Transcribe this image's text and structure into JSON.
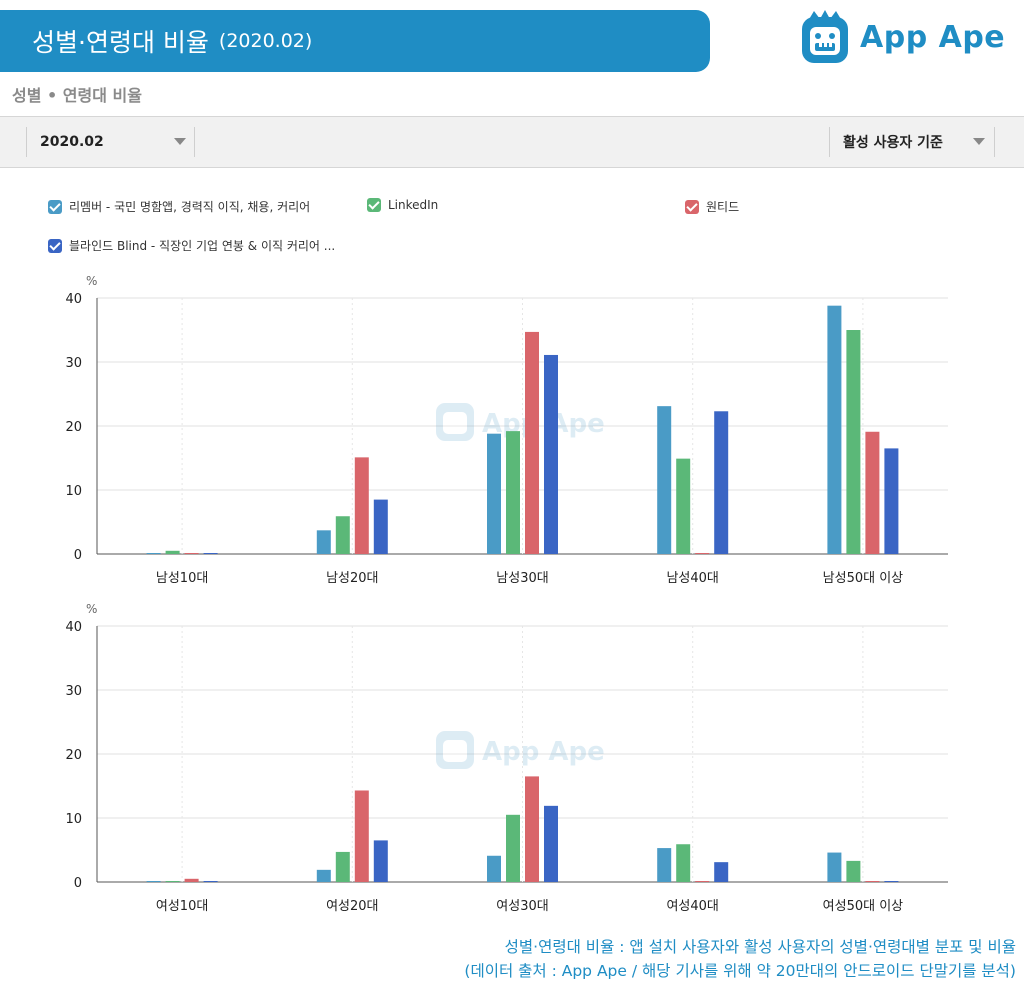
{
  "header": {
    "title": "성별·연령대 비율",
    "period": "(2020.02)",
    "logo_text": "App Ape",
    "subtitle": "성별 • 연령대 비율"
  },
  "toolbar": {
    "period_value": "2020.02",
    "basis_value": "활성 사용자 기준"
  },
  "colors": {
    "banner": "#1f8dc4",
    "series": [
      "#4a9bc6",
      "#5bb878",
      "#d9656a",
      "#3a65c4"
    ]
  },
  "legend": [
    {
      "label": "리멤버 - 국민 명함앱, 경력직 이직, 채용, 커리어"
    },
    {
      "label": "LinkedIn"
    },
    {
      "label": "원티드"
    },
    {
      "label": "블라인드 Blind - 직장인 기업 연봉 & 이직 커리어 ..."
    }
  ],
  "chart_data": [
    {
      "type": "bar",
      "unit": "%",
      "ylim": [
        0,
        40
      ],
      "yticks": [
        0,
        10,
        20,
        30,
        40
      ],
      "categories": [
        "남성10대",
        "남성20대",
        "남성30대",
        "남성40대",
        "남성50대 이상"
      ],
      "series": [
        {
          "name": "리멤버 - 국민 명함앱, 경력직 이직, 채용, 커리어",
          "values": [
            0.1,
            3.7,
            18.8,
            23.1,
            38.8
          ]
        },
        {
          "name": "LinkedIn",
          "values": [
            0.5,
            5.9,
            19.2,
            14.9,
            35.0
          ]
        },
        {
          "name": "원티드",
          "values": [
            0.1,
            15.1,
            34.7,
            0.1,
            19.1
          ]
        },
        {
          "name": "블라인드 Blind - 직장인 기업 연봉 & 이직 커리어 ...",
          "values": [
            0.1,
            8.5,
            31.1,
            22.3,
            16.5
          ]
        }
      ]
    },
    {
      "type": "bar",
      "unit": "%",
      "ylim": [
        0,
        40
      ],
      "yticks": [
        0,
        10,
        20,
        30,
        40
      ],
      "categories": [
        "여성10대",
        "여성20대",
        "여성30대",
        "여성40대",
        "여성50대 이상"
      ],
      "series": [
        {
          "name": "리멤버 - 국민 명함앱, 경력직 이직, 채용, 커리어",
          "values": [
            0.1,
            1.9,
            4.1,
            5.3,
            4.6
          ]
        },
        {
          "name": "LinkedIn",
          "values": [
            0.1,
            4.7,
            10.5,
            5.9,
            3.3
          ]
        },
        {
          "name": "원티드",
          "values": [
            0.5,
            14.3,
            16.5,
            0.1,
            0.1
          ]
        },
        {
          "name": "블라인드 Blind - 직장인 기업 연봉 & 이직 커리어 ...",
          "values": [
            0.1,
            6.5,
            11.9,
            3.1,
            0.1
          ]
        }
      ]
    }
  ],
  "caption": {
    "line1": "성별·연령대 비율 : 앱 설치 사용자와 활성 사용자의 성별·연령대별 분포 및 비율",
    "line2": "(데이터 출처 : App Ape / 해당 기사를 위해 약 20만대의 안드로이드 단말기를 분석)"
  }
}
